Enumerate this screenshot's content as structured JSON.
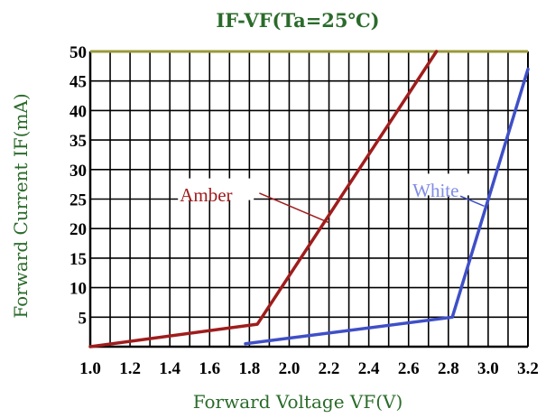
{
  "chart_data": {
    "type": "line",
    "title": "IF-VF(Ta=25℃)",
    "xlabel": "Forward Voltage VF(V)",
    "ylabel": "Forward Current IF(mA)",
    "xlim": [
      1.0,
      3.2
    ],
    "ylim": [
      0,
      50
    ],
    "x_ticks": [
      "1.0",
      "1.2",
      "1.4",
      "1.6",
      "1.8",
      "2.0",
      "2.2",
      "2.4",
      "2.6",
      "2.8",
      "3.0",
      "3.2"
    ],
    "y_ticks": [
      "5",
      "10",
      "15",
      "20",
      "25",
      "30",
      "35",
      "40",
      "45",
      "50"
    ],
    "grid": true,
    "series": [
      {
        "name": "Amber",
        "color": "#a01c1c",
        "x": [
          1.0,
          1.84,
          2.74
        ],
        "y": [
          0,
          3.8,
          50
        ]
      },
      {
        "name": "White",
        "color": "#3f4fc8",
        "x": [
          1.78,
          2.82,
          3.2
        ],
        "y": [
          0.5,
          5,
          47
        ]
      }
    ],
    "annotations": [
      {
        "text": "Amber",
        "color": "#a01c1c"
      },
      {
        "text": "White",
        "color": "#7f8ce6"
      }
    ],
    "colors": {
      "title": "#2a6b2a",
      "axis_label": "#2a6b2a",
      "top_border": "#9a9a3a"
    }
  }
}
